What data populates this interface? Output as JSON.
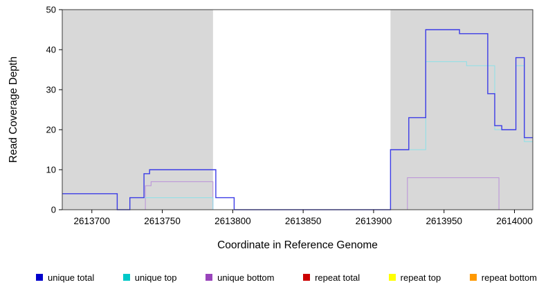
{
  "chart_data": {
    "type": "line",
    "title": "",
    "xlabel": "Coordinate in Reference Genome",
    "ylabel": "Read Coverage Depth",
    "xlim": [
      2613679,
      2614013
    ],
    "ylim": [
      0,
      50
    ],
    "x_ticks": [
      2613700,
      2613750,
      2613800,
      2613850,
      2613900,
      2613950,
      2614000
    ],
    "y_ticks": [
      0,
      10,
      20,
      30,
      40,
      50
    ],
    "grid": false,
    "shade_color": "#d8d8d8",
    "shaded_regions": [
      {
        "x0": 2613679,
        "x1": 2613786
      },
      {
        "x0": 2613912,
        "x1": 2614013
      }
    ],
    "series": [
      {
        "name": "repeat top",
        "color": "#f5f500",
        "width": 1,
        "x_end": 2614013,
        "steps": [
          [
            2613679,
            0
          ]
        ]
      },
      {
        "name": "repeat total",
        "color": "#d42020",
        "width": 1,
        "x_end": 2614013,
        "steps": [
          [
            2613679,
            0
          ]
        ]
      },
      {
        "name": "repeat bottom",
        "color": "#ffa228",
        "width": 1,
        "x_end": 2613986,
        "steps": [
          [
            2613679,
            0
          ]
        ]
      },
      {
        "name": "unique bottom",
        "color": "#b98fd8",
        "width": 1,
        "x_end": 2613990,
        "steps": [
          [
            2613679,
            0
          ],
          [
            2613738,
            6
          ],
          [
            2613742,
            7
          ],
          [
            2613786,
            0
          ],
          [
            2613924,
            8
          ],
          [
            2613989,
            0
          ]
        ]
      },
      {
        "name": "unique top",
        "color": "#8ce0e8",
        "width": 1,
        "x_end": 2614013,
        "steps": [
          [
            2613679,
            0
          ],
          [
            2613727,
            3
          ],
          [
            2613786,
            0
          ],
          [
            2613912,
            15
          ],
          [
            2613937,
            37
          ],
          [
            2613966,
            36
          ],
          [
            2613986,
            20
          ],
          [
            2614001,
            36
          ],
          [
            2614007,
            17
          ]
        ]
      },
      {
        "name": "unique total",
        "color": "#3a3ae6",
        "width": 1.4,
        "x_end": 2614013,
        "steps": [
          [
            2613679,
            4
          ],
          [
            2613718,
            0
          ],
          [
            2613727,
            3
          ],
          [
            2613737,
            9
          ],
          [
            2613741,
            10
          ],
          [
            2613788,
            3
          ],
          [
            2613801,
            0
          ],
          [
            2613912,
            15
          ],
          [
            2613925,
            23
          ],
          [
            2613937,
            45
          ],
          [
            2613961,
            44
          ],
          [
            2613981,
            29
          ],
          [
            2613986,
            21
          ],
          [
            2613991,
            20
          ],
          [
            2614001,
            38
          ],
          [
            2614007,
            18
          ]
        ]
      }
    ],
    "legend": [
      {
        "label": "unique total",
        "color": "#0000cc"
      },
      {
        "label": "unique top",
        "color": "#00c8c8"
      },
      {
        "label": "unique bottom",
        "color": "#9944bb"
      },
      {
        "label": "repeat total",
        "color": "#cc0000"
      },
      {
        "label": "repeat top",
        "color": "#ffff00"
      },
      {
        "label": "repeat bottom",
        "color": "#ff9900"
      }
    ]
  }
}
